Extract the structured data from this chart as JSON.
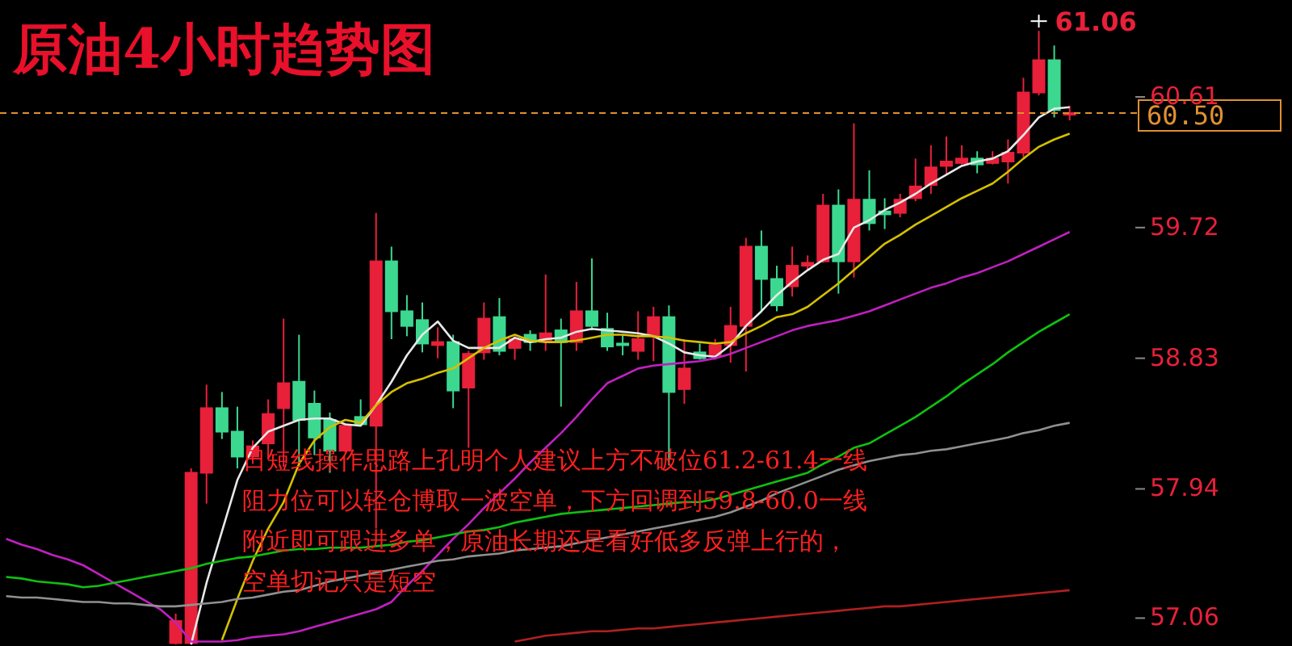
{
  "chart_data": {
    "type": "candlestick",
    "title": "原油4小时趋势图",
    "categories": [
      null,
      null,
      null,
      null,
      null,
      null,
      null,
      null,
      null,
      null,
      null,
      null,
      null,
      null,
      null,
      null,
      null,
      null,
      null,
      null,
      null,
      null,
      null,
      null,
      null,
      null,
      null,
      null,
      null,
      null,
      null,
      null,
      null,
      null,
      null,
      null,
      null,
      null,
      null,
      null,
      null,
      null,
      null,
      null,
      null,
      null,
      null,
      null,
      null,
      null,
      null,
      null,
      null,
      null,
      null,
      null,
      null,
      null,
      null,
      null,
      null,
      null,
      null,
      null,
      null,
      null,
      null,
      null,
      null,
      null
    ],
    "ohlc": [
      null,
      null,
      null,
      null,
      null,
      null,
      null,
      null,
      null,
      null,
      null,
      [
        56.89,
        57.09,
        56.88,
        57.04
      ],
      [
        56.89,
        58.08,
        56.88,
        58.05
      ],
      [
        58.05,
        58.65,
        57.84,
        58.49
      ],
      [
        58.49,
        58.6,
        58.28,
        58.33
      ],
      [
        58.33,
        58.5,
        58.08,
        58.16
      ],
      [
        58.16,
        58.27,
        58.11,
        58.23
      ],
      [
        58.25,
        58.55,
        58.14,
        58.45
      ],
      [
        58.49,
        59.1,
        58.09,
        58.66
      ],
      [
        58.67,
        58.99,
        58.1,
        58.41
      ],
      [
        58.52,
        58.61,
        58.17,
        58.29
      ],
      [
        58.41,
        58.46,
        58.05,
        58.2
      ],
      [
        58.2,
        58.39,
        58.19,
        58.37
      ],
      [
        58.43,
        58.55,
        58.37,
        58.38
      ],
      [
        58.37,
        59.82,
        57.67,
        59.49
      ],
      [
        59.49,
        59.59,
        58.96,
        59.15
      ],
      [
        59.15,
        59.26,
        58.98,
        59.05
      ],
      [
        59.09,
        59.21,
        58.87,
        58.93
      ],
      [
        58.92,
        59.04,
        58.83,
        58.94
      ],
      [
        58.94,
        58.99,
        58.49,
        58.61
      ],
      [
        58.63,
        58.88,
        58.22,
        58.86
      ],
      [
        58.87,
        59.21,
        58.82,
        59.1
      ],
      [
        59.11,
        59.24,
        58.85,
        58.88
      ],
      [
        58.9,
        58.98,
        58.82,
        58.96
      ],
      [
        58.99,
        59.02,
        58.88,
        58.94
      ],
      [
        58.95,
        59.4,
        58.88,
        59.0
      ],
      [
        59.02,
        59.1,
        58.5,
        58.94
      ],
      [
        58.94,
        59.35,
        58.88,
        59.15
      ],
      [
        59.15,
        59.51,
        59.02,
        59.05
      ],
      [
        59.03,
        59.14,
        58.88,
        58.91
      ],
      [
        58.93,
        58.99,
        58.85,
        58.92
      ],
      [
        58.88,
        59.15,
        58.82,
        58.96
      ],
      [
        58.99,
        59.18,
        58.81,
        59.11
      ],
      [
        59.11,
        59.19,
        58.1,
        58.6
      ],
      [
        58.62,
        58.96,
        58.52,
        58.76
      ],
      [
        58.87,
        58.93,
        58.82,
        58.83
      ],
      [
        58.85,
        58.96,
        58.82,
        58.92
      ],
      [
        58.92,
        59.18,
        58.8,
        59.05
      ],
      [
        59.05,
        59.65,
        58.74,
        59.59
      ],
      [
        59.59,
        59.7,
        59.15,
        59.37
      ],
      [
        59.37,
        59.46,
        59.15,
        59.19
      ],
      [
        59.32,
        59.59,
        59.25,
        59.46
      ],
      [
        59.46,
        59.53,
        59.43,
        59.48
      ],
      [
        59.49,
        59.95,
        59.48,
        59.87
      ],
      [
        59.87,
        59.98,
        59.27,
        59.49
      ],
      [
        59.49,
        60.43,
        59.38,
        59.91
      ],
      [
        59.91,
        60.11,
        59.7,
        59.75
      ],
      [
        59.83,
        59.92,
        59.71,
        59.81
      ],
      [
        59.82,
        59.95,
        59.79,
        59.91
      ],
      [
        59.92,
        60.19,
        59.9,
        60.0
      ],
      [
        60.01,
        60.28,
        59.95,
        60.13
      ],
      [
        60.14,
        60.34,
        60.08,
        60.17
      ],
      [
        60.16,
        60.28,
        60.15,
        60.19
      ],
      [
        60.19,
        60.24,
        60.09,
        60.15
      ],
      [
        60.16,
        60.24,
        60.15,
        60.19
      ],
      [
        60.17,
        60.32,
        60.02,
        60.23
      ],
      [
        60.23,
        60.74,
        60.2,
        60.64
      ],
      [
        60.64,
        61.06,
        60.62,
        60.86
      ],
      [
        60.86,
        60.96,
        60.47,
        60.52
      ],
      [
        60.49,
        60.55,
        60.45,
        60.5
      ]
    ],
    "colors": [
      null,
      null,
      null,
      null,
      null,
      null,
      null,
      null,
      null,
      null,
      null,
      "#e8203a",
      "#e8203a",
      "#e8203a",
      "#3cd890",
      "#3cd890",
      "#e8203a",
      "#e8203a",
      "#e8203a",
      "#3cd890",
      "#3cd890",
      "#3cd890",
      "#e8203a",
      "#3cd890",
      "#e8203a",
      "#3cd890",
      "#3cd890",
      "#3cd890",
      "#e8203a",
      "#3cd890",
      "#e8203a",
      "#e8203a",
      "#3cd890",
      "#e8203a",
      "#3cd890",
      "#e8203a",
      "#3cd890",
      "#e8203a",
      "#3cd890",
      "#3cd890",
      "#3cd890",
      "#e8203a",
      "#e8203a",
      "#3cd890",
      "#e8203a",
      "#3cd890",
      "#e8203a",
      "#e8203a",
      "#e8203a",
      "#3cd890",
      "#3cd890",
      "#e8203a",
      "#e8203a",
      "#e8203a",
      "#3cd890",
      "#e8203a",
      "#3cd890",
      "#3cd890",
      "#e8203a",
      "#e8203a",
      "#e8203a",
      "#e8203a",
      "#e8203a",
      "#3cd890",
      "#e8203a",
      "#e8203a",
      "#e8203a",
      "#e8203a",
      "#3cd890",
      "#e8203a"
    ],
    "series": [
      {
        "type": "line",
        "color": "#e8e8e8",
        "values": [
          null,
          null,
          null,
          null,
          null,
          null,
          null,
          null,
          null,
          null,
          null,
          null,
          56.88,
          57.3,
          57.65,
          58.0,
          58.22,
          58.33,
          58.37,
          58.41,
          58.42,
          58.42,
          58.38,
          58.37,
          58.51,
          58.67,
          58.85,
          58.99,
          59.08,
          58.95,
          58.9,
          58.9,
          58.9,
          58.97,
          58.94,
          58.96,
          58.97,
          59.01,
          59.03,
          59.02,
          59.01,
          59.0,
          58.98,
          58.93,
          58.87,
          58.85,
          58.84,
          58.92,
          59.05,
          59.15,
          59.26,
          59.35,
          59.43,
          59.5,
          59.54,
          59.72,
          59.77,
          59.84,
          59.89,
          59.95,
          60.02,
          60.08,
          60.14,
          60.17,
          60.19,
          60.24,
          60.35,
          60.47,
          60.53,
          60.54
        ]
      },
      {
        "type": "line",
        "color": "#d4c000",
        "values": [
          null,
          null,
          null,
          null,
          null,
          null,
          null,
          null,
          null,
          null,
          null,
          null,
          null,
          null,
          56.91,
          57.19,
          57.45,
          57.67,
          57.85,
          58.11,
          58.27,
          58.36,
          58.41,
          58.39,
          58.51,
          58.6,
          58.66,
          58.69,
          58.73,
          58.76,
          58.83,
          58.9,
          58.95,
          58.99,
          58.95,
          58.94,
          58.94,
          58.95,
          58.97,
          58.99,
          58.99,
          58.98,
          58.98,
          58.97,
          58.95,
          58.94,
          58.93,
          58.94,
          59.0,
          59.05,
          59.11,
          59.13,
          59.18,
          59.26,
          59.34,
          59.43,
          59.52,
          59.61,
          59.67,
          59.74,
          59.8,
          59.86,
          59.92,
          59.97,
          60.02,
          60.1,
          60.19,
          60.27,
          60.32,
          60.36
        ]
      },
      {
        "type": "line",
        "color": "#c020c0",
        "values": [
          57.6,
          57.56,
          57.53,
          57.49,
          57.46,
          57.42,
          57.36,
          57.3,
          57.24,
          57.18,
          57.12,
          57.03,
          56.9,
          56.9,
          56.9,
          56.91,
          56.93,
          56.94,
          56.95,
          56.97,
          57.0,
          57.03,
          57.06,
          57.09,
          57.12,
          57.17,
          57.28,
          57.38,
          57.49,
          57.6,
          57.7,
          57.81,
          57.91,
          58.01,
          58.12,
          58.22,
          58.32,
          58.43,
          58.55,
          58.66,
          58.71,
          58.76,
          58.78,
          58.79,
          58.8,
          58.81,
          58.83,
          58.86,
          58.9,
          58.94,
          58.98,
          59.02,
          59.05,
          59.07,
          59.09,
          59.12,
          59.15,
          59.19,
          59.23,
          59.27,
          59.31,
          59.34,
          59.38,
          59.41,
          59.45,
          59.49,
          59.54,
          59.59,
          59.64,
          59.69
        ]
      },
      {
        "type": "line",
        "color": "#10c010",
        "values": [
          57.34,
          57.33,
          57.31,
          57.3,
          57.29,
          57.27,
          57.28,
          57.3,
          57.32,
          57.34,
          57.36,
          57.38,
          57.4,
          57.43,
          57.45,
          57.47,
          57.48,
          57.5,
          57.52,
          57.53,
          57.53,
          57.54,
          57.54,
          57.54,
          57.55,
          57.56,
          57.58,
          57.59,
          57.61,
          57.63,
          57.65,
          57.66,
          57.68,
          57.71,
          57.73,
          57.75,
          57.77,
          57.78,
          57.79,
          57.8,
          57.81,
          57.82,
          57.83,
          57.84,
          57.85,
          57.85,
          57.87,
          57.9,
          57.93,
          57.96,
          57.99,
          58.02,
          58.05,
          58.11,
          58.16,
          58.22,
          58.25,
          58.31,
          58.37,
          58.43,
          58.5,
          58.57,
          58.65,
          58.72,
          58.79,
          58.87,
          58.94,
          59.01,
          59.07,
          59.13
        ]
      },
      {
        "type": "line",
        "color": "#909090",
        "values": [
          57.21,
          57.2,
          57.2,
          57.19,
          57.18,
          57.17,
          57.17,
          57.16,
          57.16,
          57.15,
          57.14,
          57.14,
          57.15,
          57.16,
          57.17,
          57.19,
          57.2,
          57.22,
          57.24,
          57.25,
          57.28,
          57.31,
          57.33,
          57.35,
          57.37,
          57.39,
          57.41,
          57.43,
          57.45,
          57.46,
          57.48,
          57.49,
          57.5,
          57.52,
          57.53,
          57.54,
          57.55,
          57.57,
          57.59,
          57.61,
          57.63,
          57.65,
          57.67,
          57.69,
          57.71,
          57.73,
          57.75,
          57.78,
          57.82,
          57.86,
          57.91,
          57.95,
          57.99,
          58.03,
          58.07,
          58.1,
          58.13,
          58.15,
          58.17,
          58.18,
          58.2,
          58.21,
          58.23,
          58.25,
          58.27,
          58.29,
          58.32,
          58.34,
          58.37,
          58.39
        ]
      },
      {
        "type": "line",
        "color": "#b02020",
        "values": [
          null,
          null,
          null,
          null,
          null,
          null,
          null,
          null,
          null,
          null,
          null,
          null,
          null,
          null,
          null,
          null,
          null,
          null,
          null,
          null,
          null,
          null,
          null,
          null,
          null,
          null,
          null,
          null,
          null,
          null,
          null,
          null,
          null,
          56.9,
          56.92,
          56.94,
          56.95,
          56.96,
          56.97,
          56.97,
          56.98,
          56.99,
          56.99,
          57.0,
          57.01,
          57.02,
          57.03,
          57.04,
          57.05,
          57.06,
          57.07,
          57.08,
          57.09,
          57.1,
          57.11,
          57.12,
          57.13,
          57.14,
          57.14,
          57.15,
          57.16,
          57.17,
          57.18,
          57.19,
          57.2,
          57.21,
          57.22,
          57.23,
          57.24,
          57.25
        ]
      }
    ],
    "ylim": [
      56.87,
      61.27
    ],
    "yticks": [
      57.06,
      57.94,
      58.83,
      59.72,
      60.61
    ],
    "tick_labels": "y",
    "ref_lines": [
      {
        "axis": "y",
        "value": 60.5,
        "label": "60.50",
        "color": "#e09030",
        "line_style": "dashed"
      }
    ],
    "annotations": [
      "61.06",
      "日短线操作思路上孔明个人建议上方不破位61.2-61.4一线",
      "阻力位可以轻仓博取一波空单，下方回调到59.8-60.0一线",
      "附近即可跟进多单，原油长期还是看好低多反弹上行的，",
      "空单切记只是短空"
    ]
  }
}
